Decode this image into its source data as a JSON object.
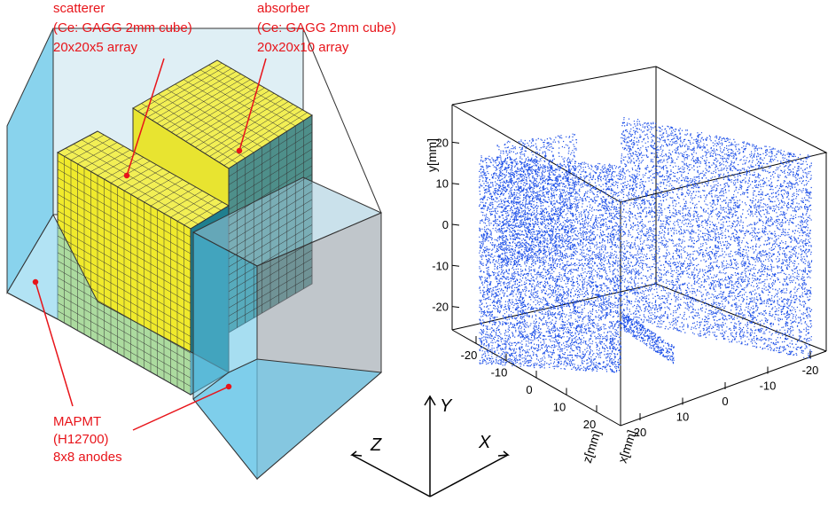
{
  "diagram": {
    "scatterer": [
      "scatterer",
      "(Ce: GAGG 2mm cube)",
      "20x20x5 array"
    ],
    "absorber": [
      "absorber",
      "(Ce: GAGG 2mm cube)",
      "20x20x10 array"
    ],
    "mapmt": [
      "MAPMT",
      "(H12700)",
      "8x8 anodes"
    ],
    "triad": {
      "y": "Y",
      "z": "Z",
      "x": "X"
    }
  },
  "plot": {
    "y_axis": {
      "title": "y[mm]",
      "ticks": [
        20,
        10,
        0,
        -10,
        -20
      ]
    },
    "z_axis": {
      "title": "z[mm]",
      "ticks": [
        -20,
        -10,
        0,
        10,
        20
      ]
    },
    "x_axis": {
      "title": "x[mm]",
      "ticks": [
        20,
        10,
        0,
        -10,
        -20
      ]
    }
  }
}
